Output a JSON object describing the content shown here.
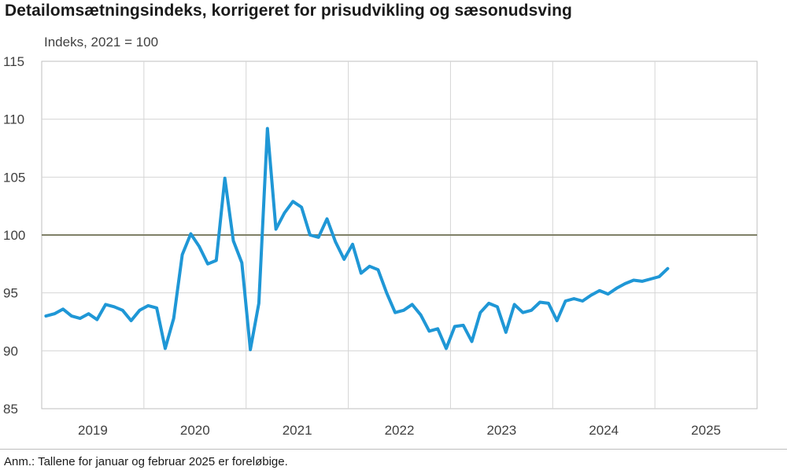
{
  "header": {
    "title": "Detailomsætningsindeks, korrigeret for prisudvikling og sæsonudsving",
    "subtitle": "Indeks, 2021 = 100"
  },
  "footer": {
    "note": "Anm.: Tallene for januar og februar 2025 er foreløbige."
  },
  "colors": {
    "series": "#1f97d6",
    "reference_line": "#7f8067",
    "grid": "#d5d5d5",
    "axis": "#bfbfbf"
  },
  "chart_data": {
    "type": "line",
    "title": "Detailomsætningsindeks, korrigeret for prisudvikling og sæsonudsving",
    "ylabel": "Indeks, 2021 = 100",
    "xlabel": "",
    "ylim": [
      85,
      115
    ],
    "yticks": [
      85,
      90,
      95,
      100,
      105,
      110,
      115
    ],
    "x_range": [
      "2019-01",
      "2025-12"
    ],
    "x_ticks": [
      "2019",
      "2020",
      "2021",
      "2022",
      "2023",
      "2024",
      "2025"
    ],
    "grid": true,
    "reference_line": {
      "y": 100
    },
    "series": [
      {
        "x": [
          "2019-01",
          "2019-02",
          "2019-03",
          "2019-04",
          "2019-05",
          "2019-06",
          "2019-07",
          "2019-08",
          "2019-09",
          "2019-10",
          "2019-11",
          "2019-12",
          "2020-01",
          "2020-02",
          "2020-03",
          "2020-04",
          "2020-05",
          "2020-06",
          "2020-07",
          "2020-08",
          "2020-09",
          "2020-10",
          "2020-11",
          "2020-12",
          "2021-01",
          "2021-02",
          "2021-03",
          "2021-04",
          "2021-05",
          "2021-06",
          "2021-07",
          "2021-08",
          "2021-09",
          "2021-10",
          "2021-11",
          "2021-12",
          "2022-01",
          "2022-02",
          "2022-03",
          "2022-04",
          "2022-05",
          "2022-06",
          "2022-07",
          "2022-08",
          "2022-09",
          "2022-10",
          "2022-11",
          "2022-12",
          "2023-01",
          "2023-02",
          "2023-03",
          "2023-04",
          "2023-05",
          "2023-06",
          "2023-07",
          "2023-08",
          "2023-09",
          "2023-10",
          "2023-11",
          "2023-12",
          "2024-01",
          "2024-02",
          "2024-03",
          "2024-04",
          "2024-05",
          "2024-06",
          "2024-07",
          "2024-08",
          "2024-09",
          "2024-10",
          "2024-11",
          "2024-12",
          "2025-01",
          "2025-02"
        ],
        "y": [
          93.0,
          93.2,
          93.6,
          93.0,
          92.8,
          93.2,
          92.7,
          94.0,
          93.8,
          93.5,
          92.6,
          93.5,
          93.9,
          93.7,
          90.2,
          92.8,
          98.3,
          100.1,
          99.0,
          97.5,
          97.8,
          104.9,
          99.5,
          97.6,
          90.1,
          94.1,
          109.2,
          100.5,
          101.9,
          102.9,
          102.4,
          100.0,
          99.8,
          101.4,
          99.4,
          97.9,
          99.2,
          96.7,
          97.3,
          97.0,
          95.0,
          93.3,
          93.5,
          94.0,
          93.1,
          91.7,
          91.9,
          90.2,
          92.1,
          92.2,
          90.8,
          93.3,
          94.1,
          93.8,
          91.6,
          94.0,
          93.3,
          93.5,
          94.2,
          94.1,
          92.6,
          94.3,
          94.5,
          94.3,
          94.8,
          95.2,
          94.9,
          95.4,
          95.8,
          96.1,
          96.0,
          96.2,
          96.4,
          97.1
        ]
      }
    ]
  }
}
